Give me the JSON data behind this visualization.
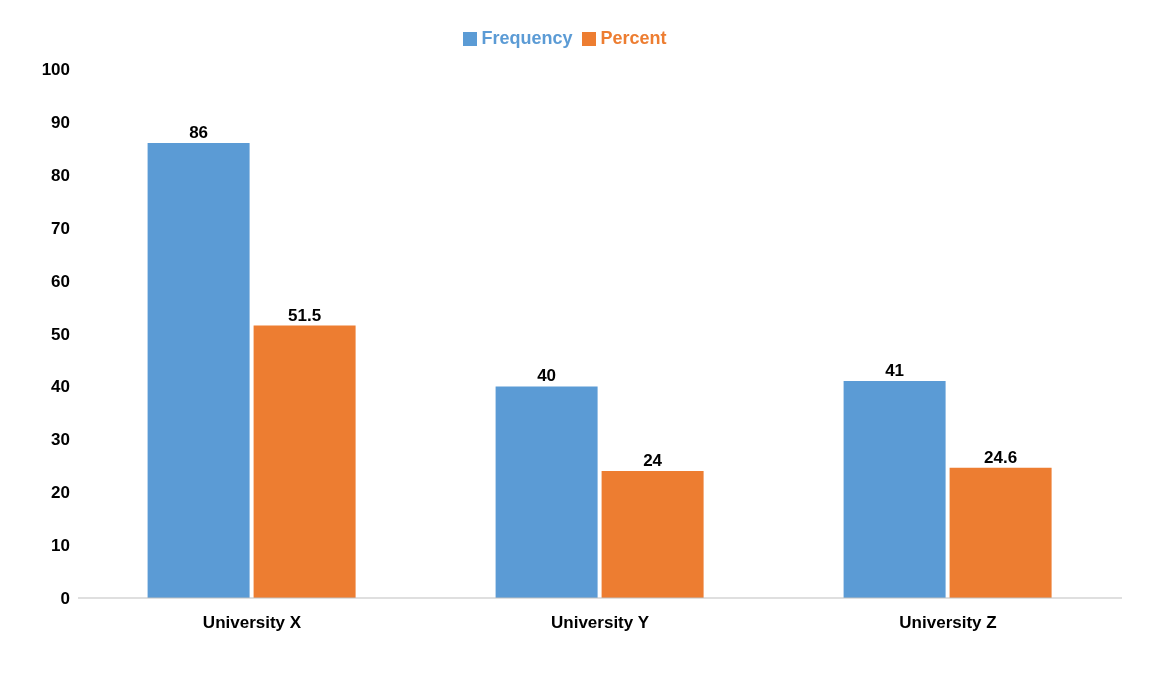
{
  "chart_data": {
    "type": "bar",
    "categories": [
      "University X",
      "University Y",
      "University Z"
    ],
    "series": [
      {
        "name": "Frequency",
        "color": "#5b9bd5",
        "values": [
          86,
          40,
          41
        ]
      },
      {
        "name": "Percent",
        "color": "#ed7d31",
        "values": [
          51.5,
          24,
          24.6
        ]
      }
    ],
    "ylim": [
      0,
      100
    ],
    "yticks": [
      0,
      10,
      20,
      30,
      40,
      50,
      60,
      70,
      80,
      90,
      100
    ],
    "grid": false,
    "legend": "top",
    "data_labels": true
  }
}
